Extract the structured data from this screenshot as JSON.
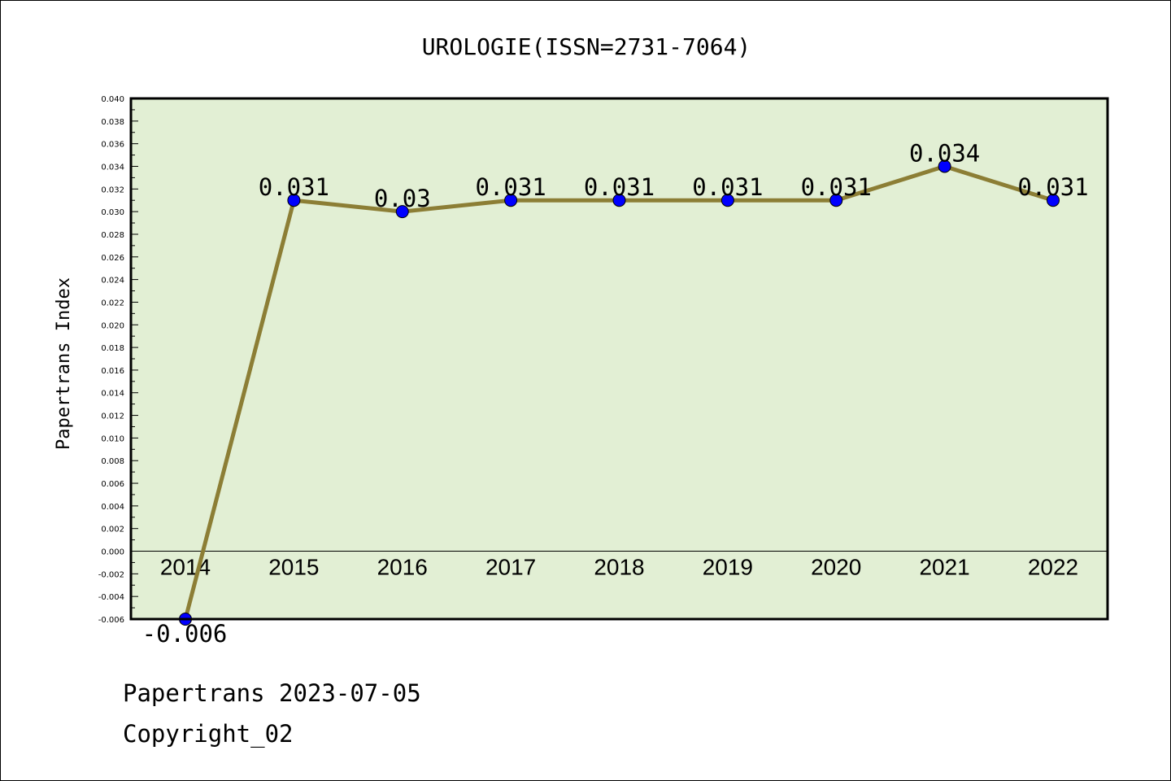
{
  "chart_data": {
    "type": "line",
    "title": "UROLOGIE(ISSN=2731-7064)",
    "xlabel": "",
    "ylabel": "Papertrans Index",
    "categories": [
      "2014",
      "2015",
      "2016",
      "2017",
      "2018",
      "2019",
      "2020",
      "2021",
      "2022"
    ],
    "values": [
      -0.006,
      0.031,
      0.03,
      0.031,
      0.031,
      0.031,
      0.031,
      0.034,
      0.031
    ],
    "data_labels": [
      "-0.006",
      "0.031",
      "0.03",
      "0.031",
      "0.031",
      "0.031",
      "0.031",
      "0.034",
      "0.031"
    ],
    "ylim": [
      -0.006,
      0.04
    ],
    "yticks": [
      "-0.006",
      "-0.004",
      "-0.002",
      "0.000",
      "0.002",
      "0.004",
      "0.006",
      "0.008",
      "0.010",
      "0.012",
      "0.014",
      "0.016",
      "0.018",
      "0.020",
      "0.022",
      "0.024",
      "0.026",
      "0.028",
      "0.030",
      "0.032",
      "0.034",
      "0.036",
      "0.038",
      "0.040"
    ],
    "grid": false,
    "legend": "none",
    "colors": {
      "line": "#8c7e35",
      "marker": "#0000ff",
      "plot_background": "#e2efd4",
      "axis": "#000000"
    }
  },
  "footer": {
    "line1": "Papertrans 2023-07-05",
    "line2": "Copyright_02"
  }
}
